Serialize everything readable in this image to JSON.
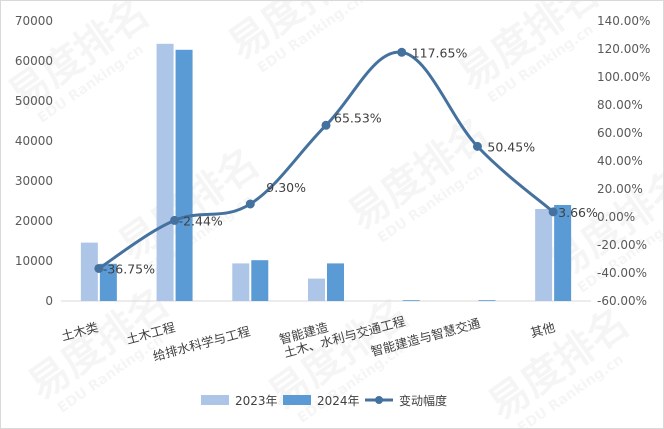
{
  "chart_data": {
    "type": "bar",
    "categories": [
      "土木类",
      "土木工程",
      "给排水科学与工程",
      "智能建造",
      "土木、水利与交通工程",
      "智能建造与智慧交通",
      "其他"
    ],
    "series": [
      {
        "name": "2023年",
        "type": "bar",
        "axis": "left",
        "color": "#adc6e8",
        "values": [
          14600,
          64300,
          9400,
          5600,
          0,
          0,
          23000
        ]
      },
      {
        "name": "2024年",
        "type": "bar",
        "axis": "left",
        "color": "#5b9bd5",
        "values": [
          9300,
          62800,
          10200,
          9400,
          200,
          200,
          24000
        ]
      },
      {
        "name": "变动幅度",
        "type": "line",
        "axis": "right",
        "color": "#44719e",
        "values": [
          -36.75,
          -2.44,
          9.3,
          65.53,
          117.65,
          50.45,
          3.66
        ],
        "labels": [
          "-36.75%",
          "-2.44%",
          "9.30%",
          "65.53%",
          "117.65%",
          "50.45%",
          "3.66%"
        ]
      }
    ],
    "y_left": {
      "min": 0,
      "max": 70000,
      "ticks": [
        "0",
        "10000",
        "20000",
        "30000",
        "40000",
        "50000",
        "60000",
        "70000"
      ]
    },
    "y_right": {
      "min": -60,
      "max": 140,
      "ticks": [
        "-60.00%",
        "-40.00%",
        "-20.00%",
        "0.00%",
        "20.00%",
        "40.00%",
        "60.00%",
        "80.00%",
        "100.00%",
        "120.00%",
        "140.00%"
      ]
    },
    "grid": false,
    "legend": "bottom"
  },
  "watermark": {
    "brand": "易度排名",
    "latin": "EDU Ranking.cn"
  }
}
